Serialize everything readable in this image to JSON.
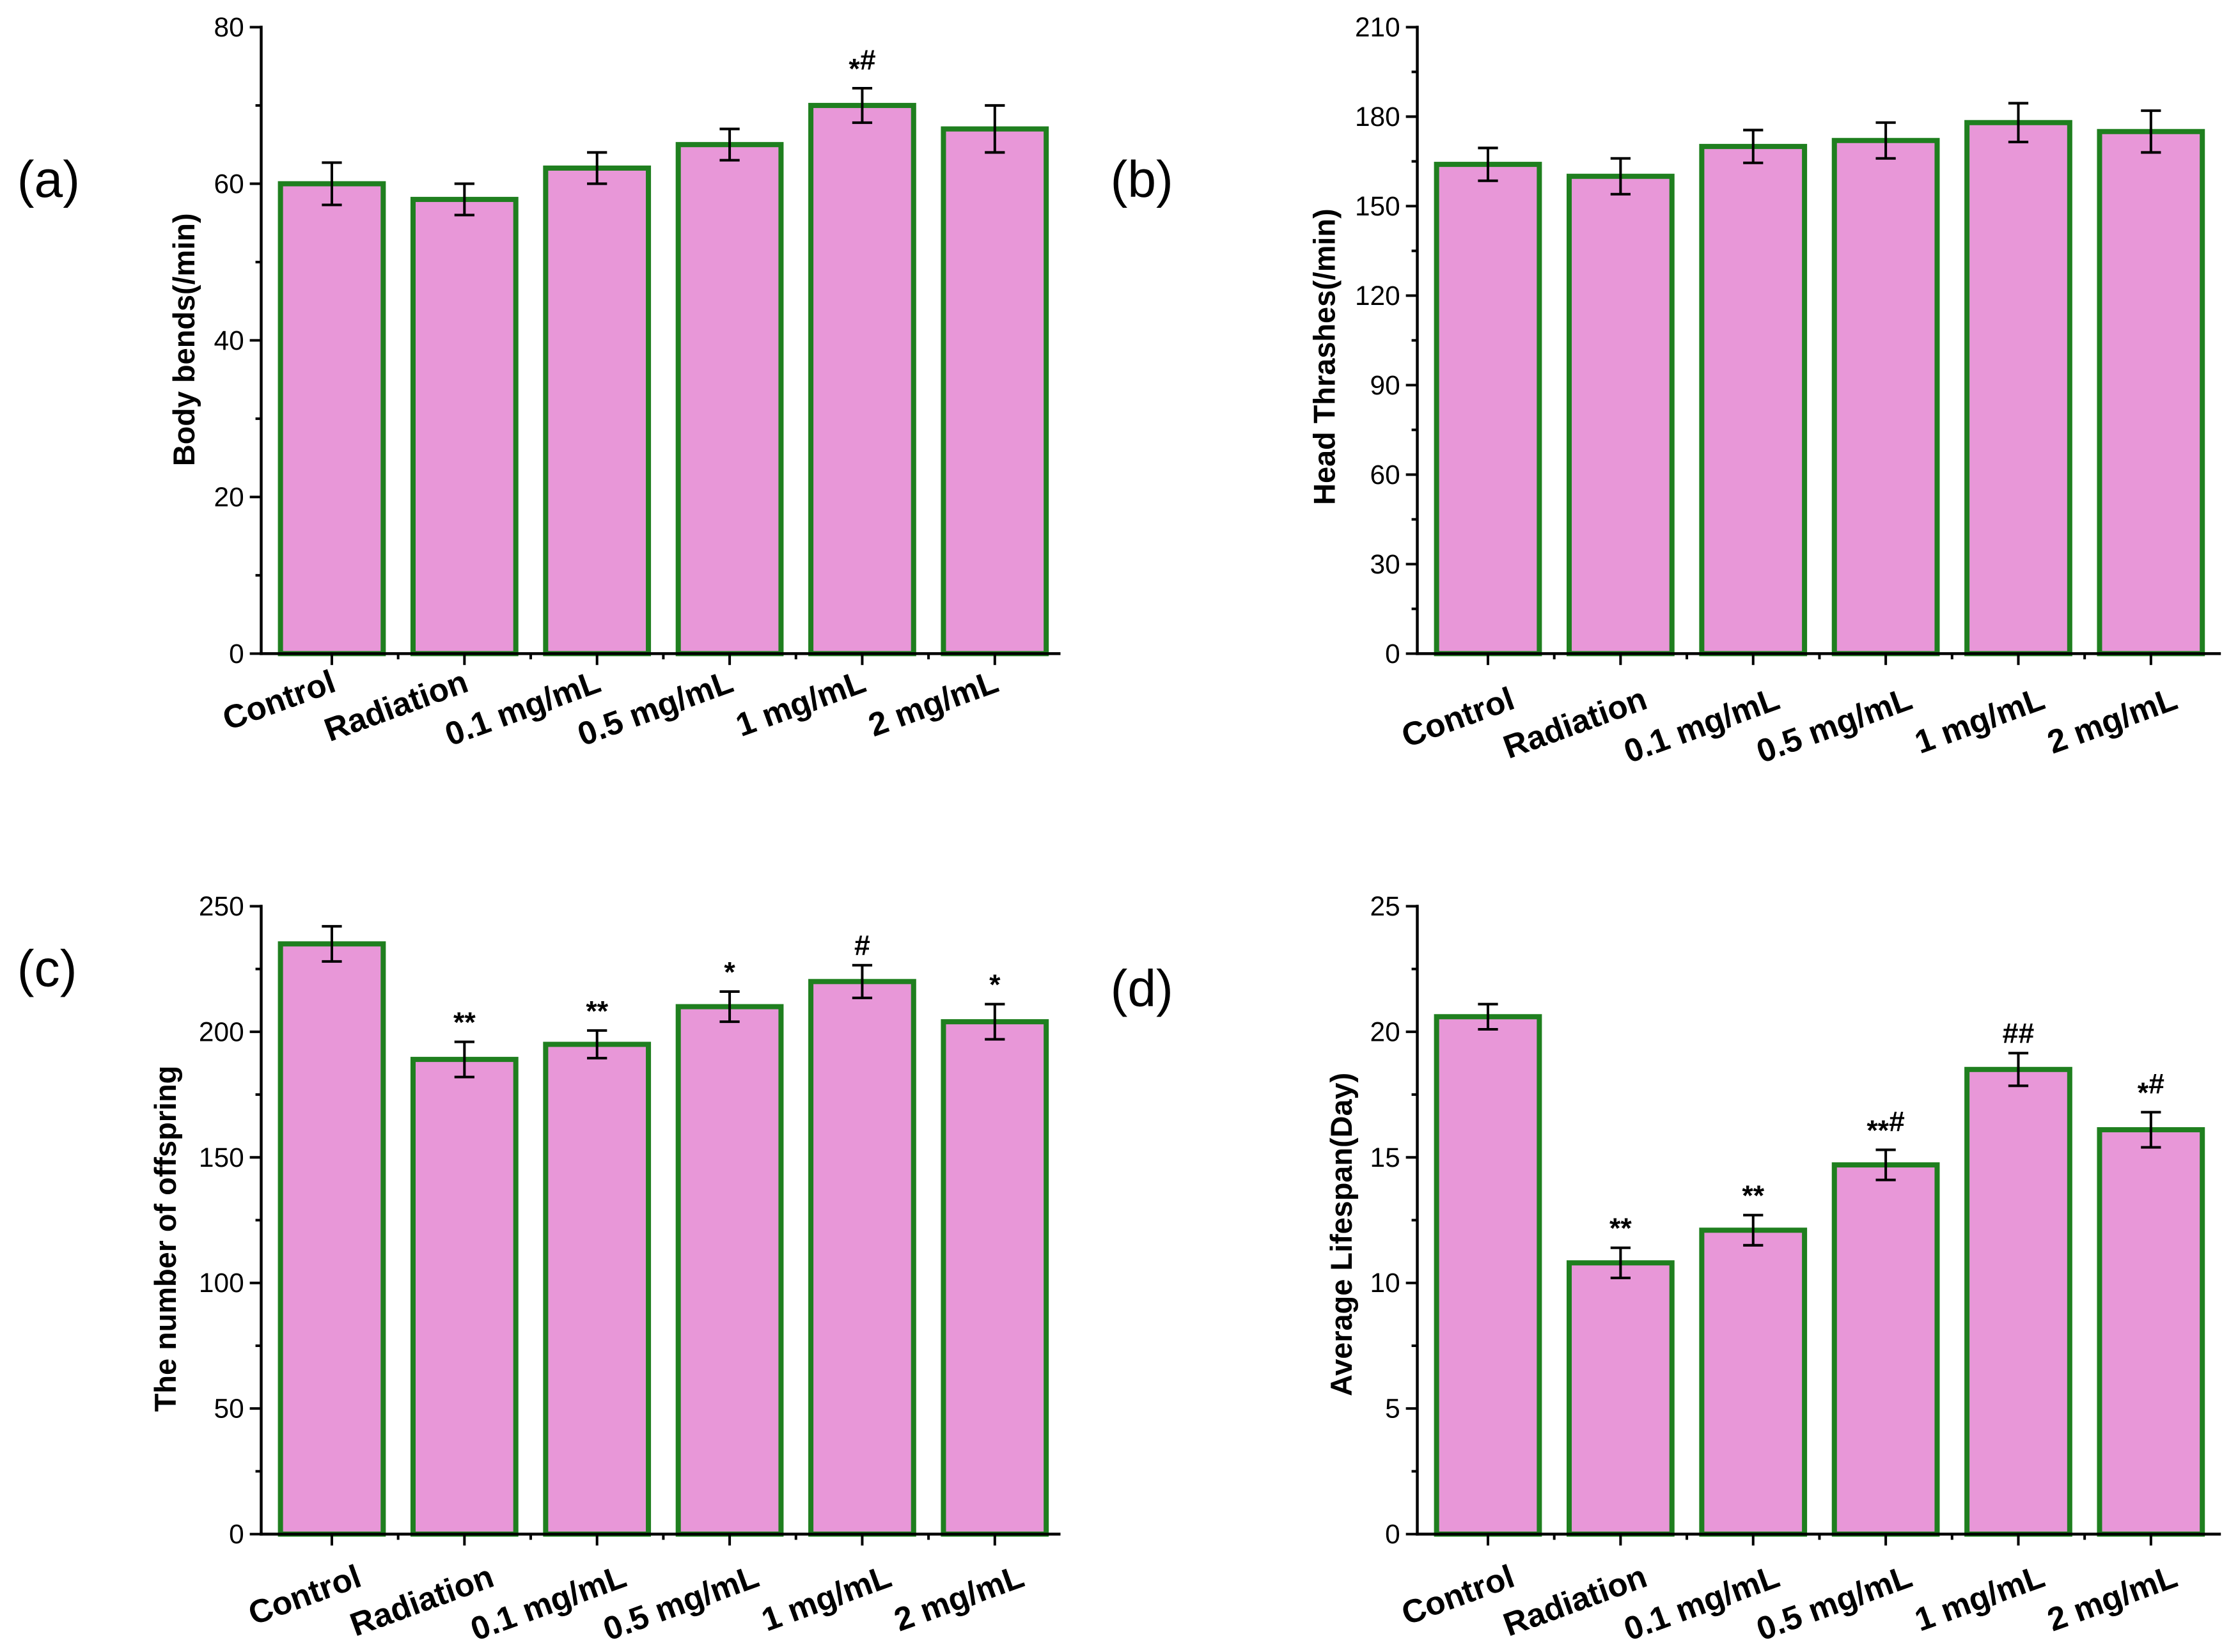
{
  "colors": {
    "bar_fill": "#e897d8",
    "bar_edge": "#1f7f1f"
  },
  "chart_data": [
    {
      "panel_label": "(a)",
      "type": "bar",
      "categories": [
        "Control",
        "Radiation",
        "0.1 mg/mL",
        "0.5 mg/mL",
        "1 mg/mL",
        "2 mg/mL"
      ],
      "values": [
        60,
        58,
        62,
        65,
        70,
        67
      ],
      "errors": [
        2.7,
        2.0,
        2.0,
        2.0,
        2.2,
        3.0
      ],
      "annotations": [
        "",
        "",
        "",
        "",
        "*#",
        ""
      ],
      "xlabel": "",
      "ylabel": "Body bends(/min)",
      "ylim": [
        0,
        80
      ],
      "yticks": [
        0,
        20,
        40,
        60,
        80
      ]
    },
    {
      "panel_label": "(b)",
      "type": "bar",
      "categories": [
        "Control",
        "Radiation",
        "0.1 mg/mL",
        "0.5 mg/mL",
        "1 mg/mL",
        "2 mg/mL"
      ],
      "values": [
        164,
        160,
        170,
        172,
        178,
        175
      ],
      "errors": [
        5.5,
        6.0,
        5.5,
        6.0,
        6.5,
        7.0
      ],
      "annotations": [
        "",
        "",
        "",
        "",
        "",
        ""
      ],
      "xlabel": "",
      "ylabel": "Head Thrashes(/min)",
      "ylim": [
        0,
        210
      ],
      "yticks": [
        0,
        30,
        60,
        90,
        120,
        150,
        180,
        210
      ]
    },
    {
      "panel_label": "(c)",
      "type": "bar",
      "categories": [
        "Control",
        "Radiation",
        "0.1 mg/mL",
        "0.5 mg/mL",
        "1 mg/mL",
        "2 mg/mL"
      ],
      "values": [
        235,
        189,
        195,
        210,
        220,
        204
      ],
      "errors": [
        7,
        7,
        5.5,
        6,
        6.5,
        7
      ],
      "annotations": [
        "",
        "**",
        "**",
        "*",
        "#",
        "*"
      ],
      "xlabel": "",
      "ylabel": "The number of offspring",
      "ylim": [
        0,
        250
      ],
      "yticks": [
        0,
        50,
        100,
        150,
        200,
        250
      ]
    },
    {
      "panel_label": "(d)",
      "type": "bar",
      "categories": [
        "Control",
        "Radiation",
        "0.1 mg/mL",
        "0.5 mg/mL",
        "1 mg/mL",
        "2 mg/mL"
      ],
      "values": [
        20.6,
        10.8,
        12.1,
        14.7,
        18.5,
        16.1
      ],
      "errors": [
        0.5,
        0.6,
        0.6,
        0.6,
        0.65,
        0.7
      ],
      "annotations": [
        "",
        "**",
        "**",
        "**#",
        "##",
        "*#"
      ],
      "xlabel": "",
      "ylabel": "Average Lifespan(Day)",
      "ylim": [
        0,
        25
      ],
      "yticks": [
        0,
        5,
        10,
        15,
        20,
        25
      ]
    }
  ]
}
